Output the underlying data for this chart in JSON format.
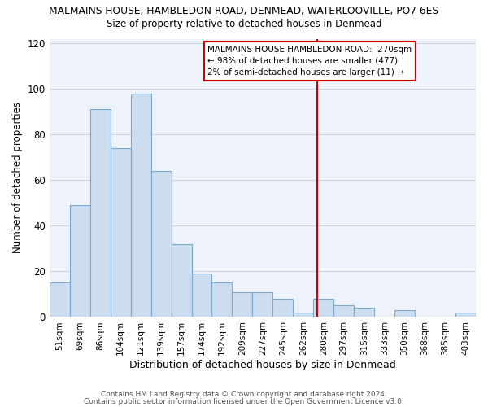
{
  "title": "MALMAINS HOUSE, HAMBLEDON ROAD, DENMEAD, WATERLOOVILLE, PO7 6ES",
  "subtitle": "Size of property relative to detached houses in Denmead",
  "xlabel": "Distribution of detached houses by size in Denmead",
  "ylabel": "Number of detached properties",
  "bar_color": "#ccddf0",
  "bar_edge_color": "#7aaad0",
  "background_color": "#eef2fb",
  "grid_color": "#c8ccd8",
  "bin_labels": [
    "51sqm",
    "69sqm",
    "86sqm",
    "104sqm",
    "121sqm",
    "139sqm",
    "157sqm",
    "174sqm",
    "192sqm",
    "209sqm",
    "227sqm",
    "245sqm",
    "262sqm",
    "280sqm",
    "297sqm",
    "315sqm",
    "333sqm",
    "350sqm",
    "368sqm",
    "385sqm",
    "403sqm"
  ],
  "bar_heights": [
    15,
    49,
    91,
    74,
    98,
    64,
    32,
    19,
    15,
    11,
    11,
    8,
    2,
    8,
    5,
    4,
    0,
    3,
    0,
    0,
    2
  ],
  "vline_color": "#cc0000",
  "annotation_title": "MALMAINS HOUSE HAMBLEDON ROAD:  270sqm",
  "annotation_line1": "← 98% of detached houses are smaller (477)",
  "annotation_line2": "2% of semi-detached houses are larger (11) →",
  "footer_line1": "Contains HM Land Registry data © Crown copyright and database right 2024.",
  "footer_line2": "Contains public sector information licensed under the Open Government Licence v3.0.",
  "ylim": [
    0,
    122
  ],
  "yticks": [
    0,
    20,
    40,
    60,
    80,
    100,
    120
  ]
}
